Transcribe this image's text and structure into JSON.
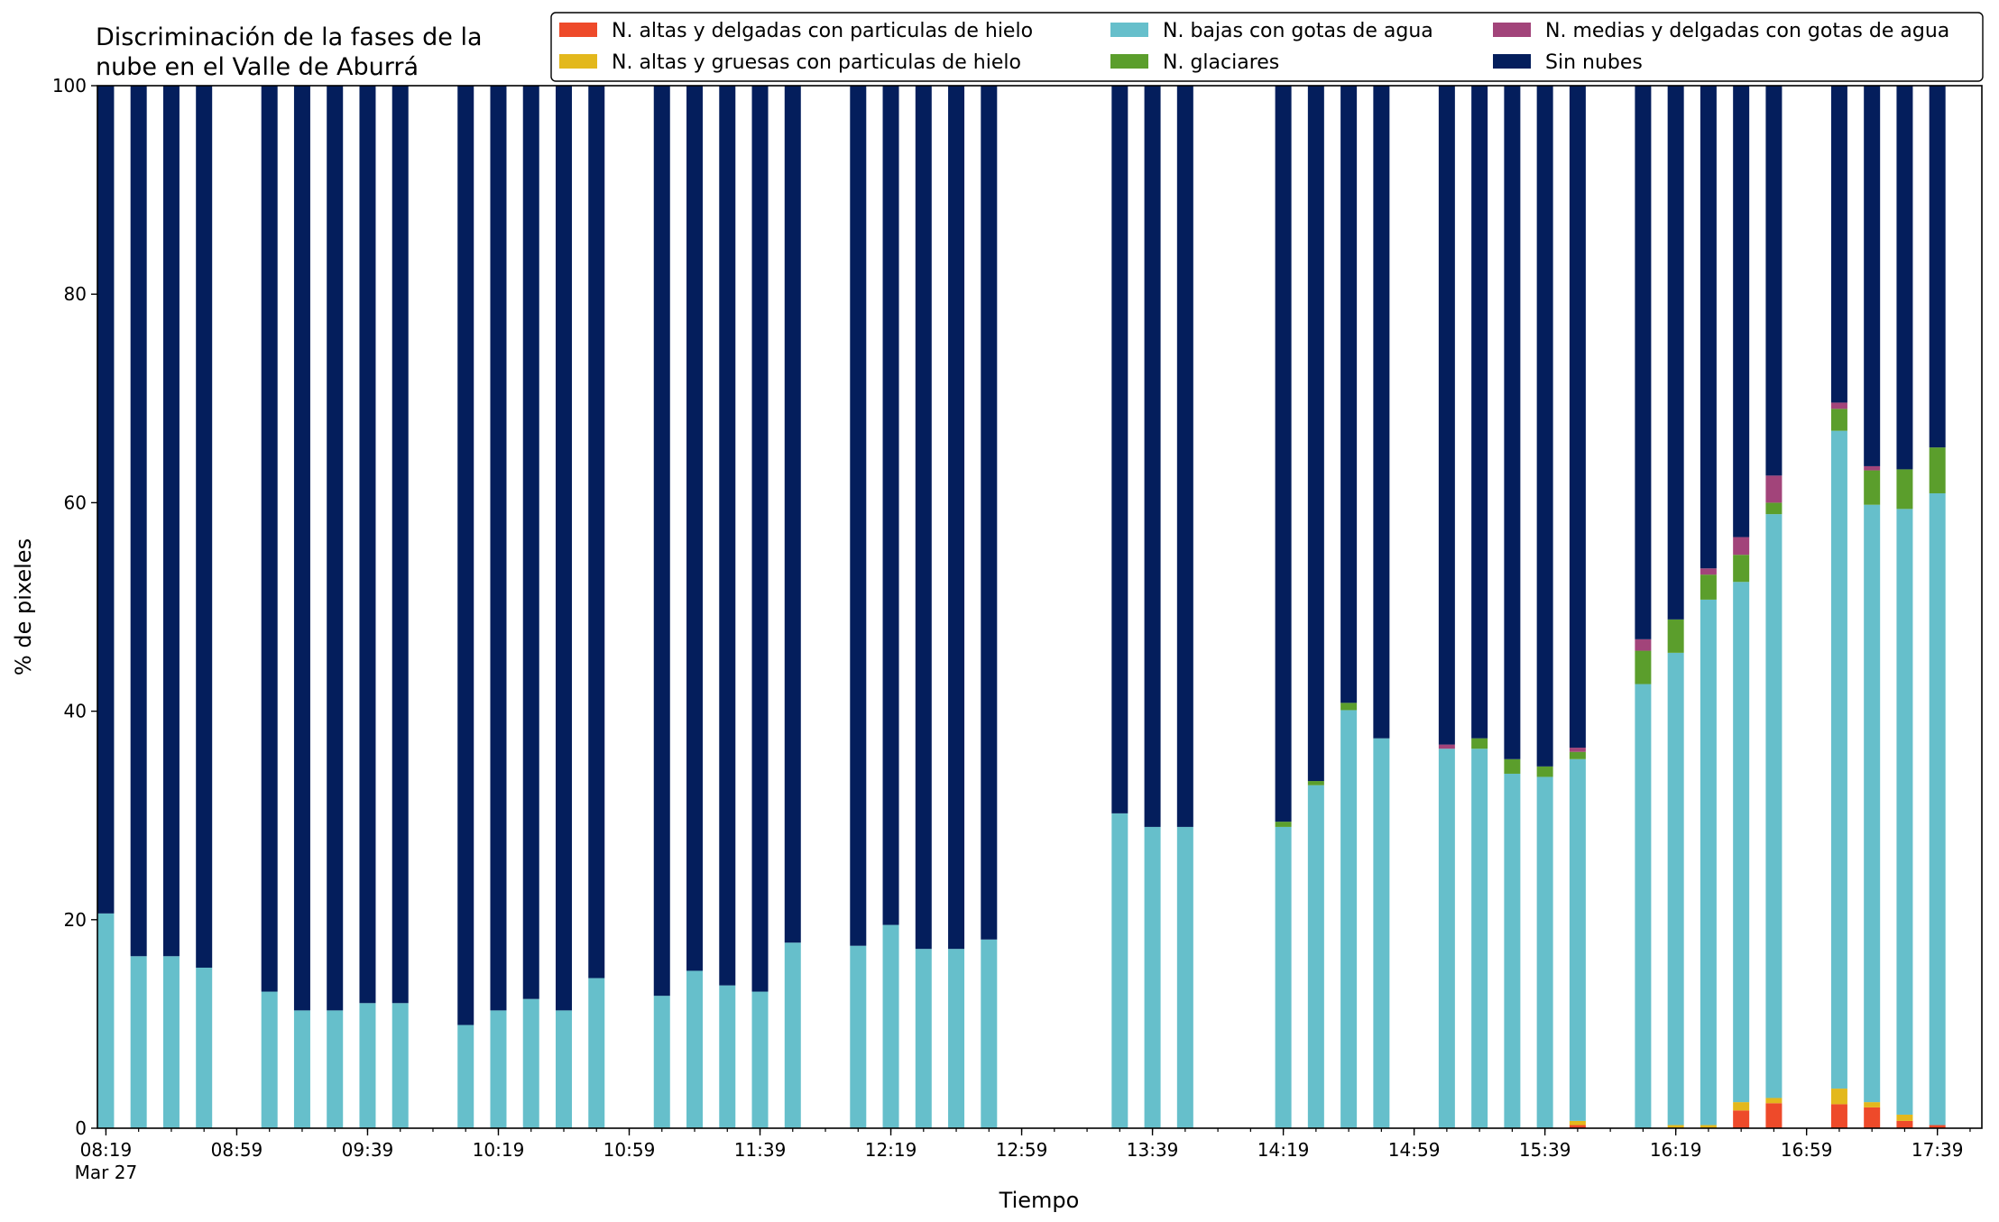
{
  "chart_data": {
    "type": "bar",
    "stacked": true,
    "title": [
      "Discriminación de la fases de la",
      "nube en el Valle de Aburrá"
    ],
    "xlabel": "Tiempo",
    "ylabel": "% de pixeles",
    "ylim": [
      0,
      100
    ],
    "yticks": [
      0,
      20,
      40,
      60,
      80,
      100
    ],
    "grid": false,
    "legend_position": "top-right",
    "x_range_minutes": [
      499,
      1070
    ],
    "xticks": [
      {
        "minute": 499,
        "label": "08:19",
        "sublabel": "Mar 27"
      },
      {
        "minute": 539,
        "label": "08:59"
      },
      {
        "minute": 579,
        "label": "09:39"
      },
      {
        "minute": 619,
        "label": "10:19"
      },
      {
        "minute": 659,
        "label": "10:59"
      },
      {
        "minute": 699,
        "label": "11:39"
      },
      {
        "minute": 739,
        "label": "12:19"
      },
      {
        "minute": 779,
        "label": "12:59"
      },
      {
        "minute": 819,
        "label": "13:39"
      },
      {
        "minute": 859,
        "label": "14:19"
      },
      {
        "minute": 899,
        "label": "14:59"
      },
      {
        "minute": 939,
        "label": "15:39"
      },
      {
        "minute": 979,
        "label": "16:19"
      },
      {
        "minute": 1019,
        "label": "16:59"
      },
      {
        "minute": 1059,
        "label": "17:39"
      }
    ],
    "times": [
      "08:19",
      "08:29",
      "08:39",
      "08:49",
      "09:09",
      "09:19",
      "09:29",
      "09:39",
      "09:49",
      "10:09",
      "10:19",
      "10:29",
      "10:39",
      "10:49",
      "11:09",
      "11:19",
      "11:29",
      "11:39",
      "11:49",
      "12:09",
      "12:19",
      "12:29",
      "12:39",
      "12:49",
      "13:29",
      "13:39",
      "13:49",
      "14:19",
      "14:29",
      "14:39",
      "14:49",
      "15:09",
      "15:19",
      "15:29",
      "15:39",
      "15:49",
      "16:09",
      "16:19",
      "16:29",
      "16:39",
      "16:49",
      "17:09",
      "17:19",
      "17:29",
      "17:39"
    ],
    "minutes": [
      499,
      509,
      519,
      529,
      549,
      559,
      569,
      579,
      589,
      609,
      619,
      629,
      639,
      649,
      669,
      679,
      689,
      699,
      709,
      729,
      739,
      749,
      759,
      769,
      809,
      819,
      829,
      859,
      869,
      879,
      889,
      909,
      919,
      929,
      939,
      949,
      969,
      979,
      989,
      999,
      1009,
      1029,
      1039,
      1049,
      1059
    ],
    "series": [
      {
        "name": "N. altas y delgadas con particulas de hielo",
        "color": "#ee4a2a",
        "values": [
          0,
          0,
          0,
          0,
          0,
          0,
          0,
          0,
          0,
          0,
          0,
          0,
          0,
          0,
          0,
          0,
          0,
          0,
          0,
          0,
          0,
          0,
          0,
          0,
          0,
          0,
          0,
          0,
          0,
          0,
          0,
          0,
          0,
          0,
          0,
          0.3,
          0,
          0,
          0,
          1.7,
          2.4,
          2.3,
          2.0,
          0.7,
          0.3
        ]
      },
      {
        "name": "N. altas y gruesas con particulas de hielo",
        "color": "#e3b81c",
        "values": [
          0,
          0,
          0,
          0,
          0,
          0,
          0,
          0,
          0,
          0,
          0,
          0,
          0,
          0,
          0,
          0,
          0,
          0,
          0,
          0,
          0,
          0,
          0,
          0,
          0,
          0,
          0,
          0,
          0,
          0,
          0,
          0,
          0,
          0,
          0,
          0.4,
          0,
          0.3,
          0.3,
          0.8,
          0.5,
          1.5,
          0.5,
          0.6,
          0
        ]
      },
      {
        "name": "N. bajas con gotas de agua",
        "color": "#66bfcb",
        "values": [
          20.6,
          16.5,
          16.5,
          15.4,
          13.1,
          11.3,
          11.3,
          12.0,
          12.0,
          9.9,
          11.3,
          12.4,
          11.3,
          14.4,
          12.7,
          15.1,
          13.7,
          13.1,
          17.8,
          17.5,
          19.5,
          17.2,
          17.2,
          18.1,
          30.2,
          28.9,
          28.9,
          28.9,
          32.9,
          40.1,
          37.4,
          36.4,
          36.4,
          34.0,
          33.7,
          34.7,
          42.6,
          45.3,
          50.4,
          49.9,
          56.0,
          63.1,
          57.3,
          58.1,
          60.6
        ]
      },
      {
        "name": "N. glaciares",
        "color": "#5b9e2c",
        "values": [
          0,
          0,
          0,
          0,
          0,
          0,
          0,
          0,
          0,
          0,
          0,
          0,
          0,
          0,
          0,
          0,
          0,
          0,
          0,
          0,
          0,
          0,
          0,
          0,
          0,
          0,
          0,
          0.5,
          0.4,
          0.7,
          0,
          0,
          1.0,
          1.4,
          1.0,
          0.7,
          3.2,
          3.2,
          2.4,
          2.6,
          1.1,
          2.1,
          3.3,
          3.8,
          4.4
        ]
      },
      {
        "name": "N. medias y delgadas con gotas de agua",
        "color": "#a2447a",
        "values": [
          0,
          0,
          0,
          0,
          0,
          0,
          0,
          0,
          0,
          0,
          0,
          0,
          0,
          0,
          0,
          0,
          0,
          0,
          0,
          0,
          0,
          0,
          0,
          0,
          0,
          0,
          0,
          0,
          0,
          0,
          0,
          0.4,
          0,
          0,
          0,
          0.4,
          1.1,
          0,
          0.6,
          1.7,
          2.6,
          0.6,
          0.4,
          0,
          0
        ]
      },
      {
        "name": "Sin nubes",
        "color": "#041e5c",
        "values": [
          79.4,
          83.5,
          83.5,
          84.6,
          86.9,
          88.7,
          88.7,
          88.0,
          88.0,
          90.1,
          88.7,
          87.6,
          88.7,
          85.6,
          87.3,
          84.9,
          86.3,
          86.9,
          82.2,
          82.5,
          80.5,
          82.8,
          82.8,
          81.9,
          69.8,
          71.1,
          71.1,
          70.6,
          66.7,
          59.2,
          62.6,
          63.2,
          62.6,
          64.6,
          65.3,
          63.5,
          53.1,
          51.2,
          46.3,
          43.3,
          37.4,
          30.4,
          36.5,
          36.8,
          34.7
        ]
      }
    ]
  }
}
